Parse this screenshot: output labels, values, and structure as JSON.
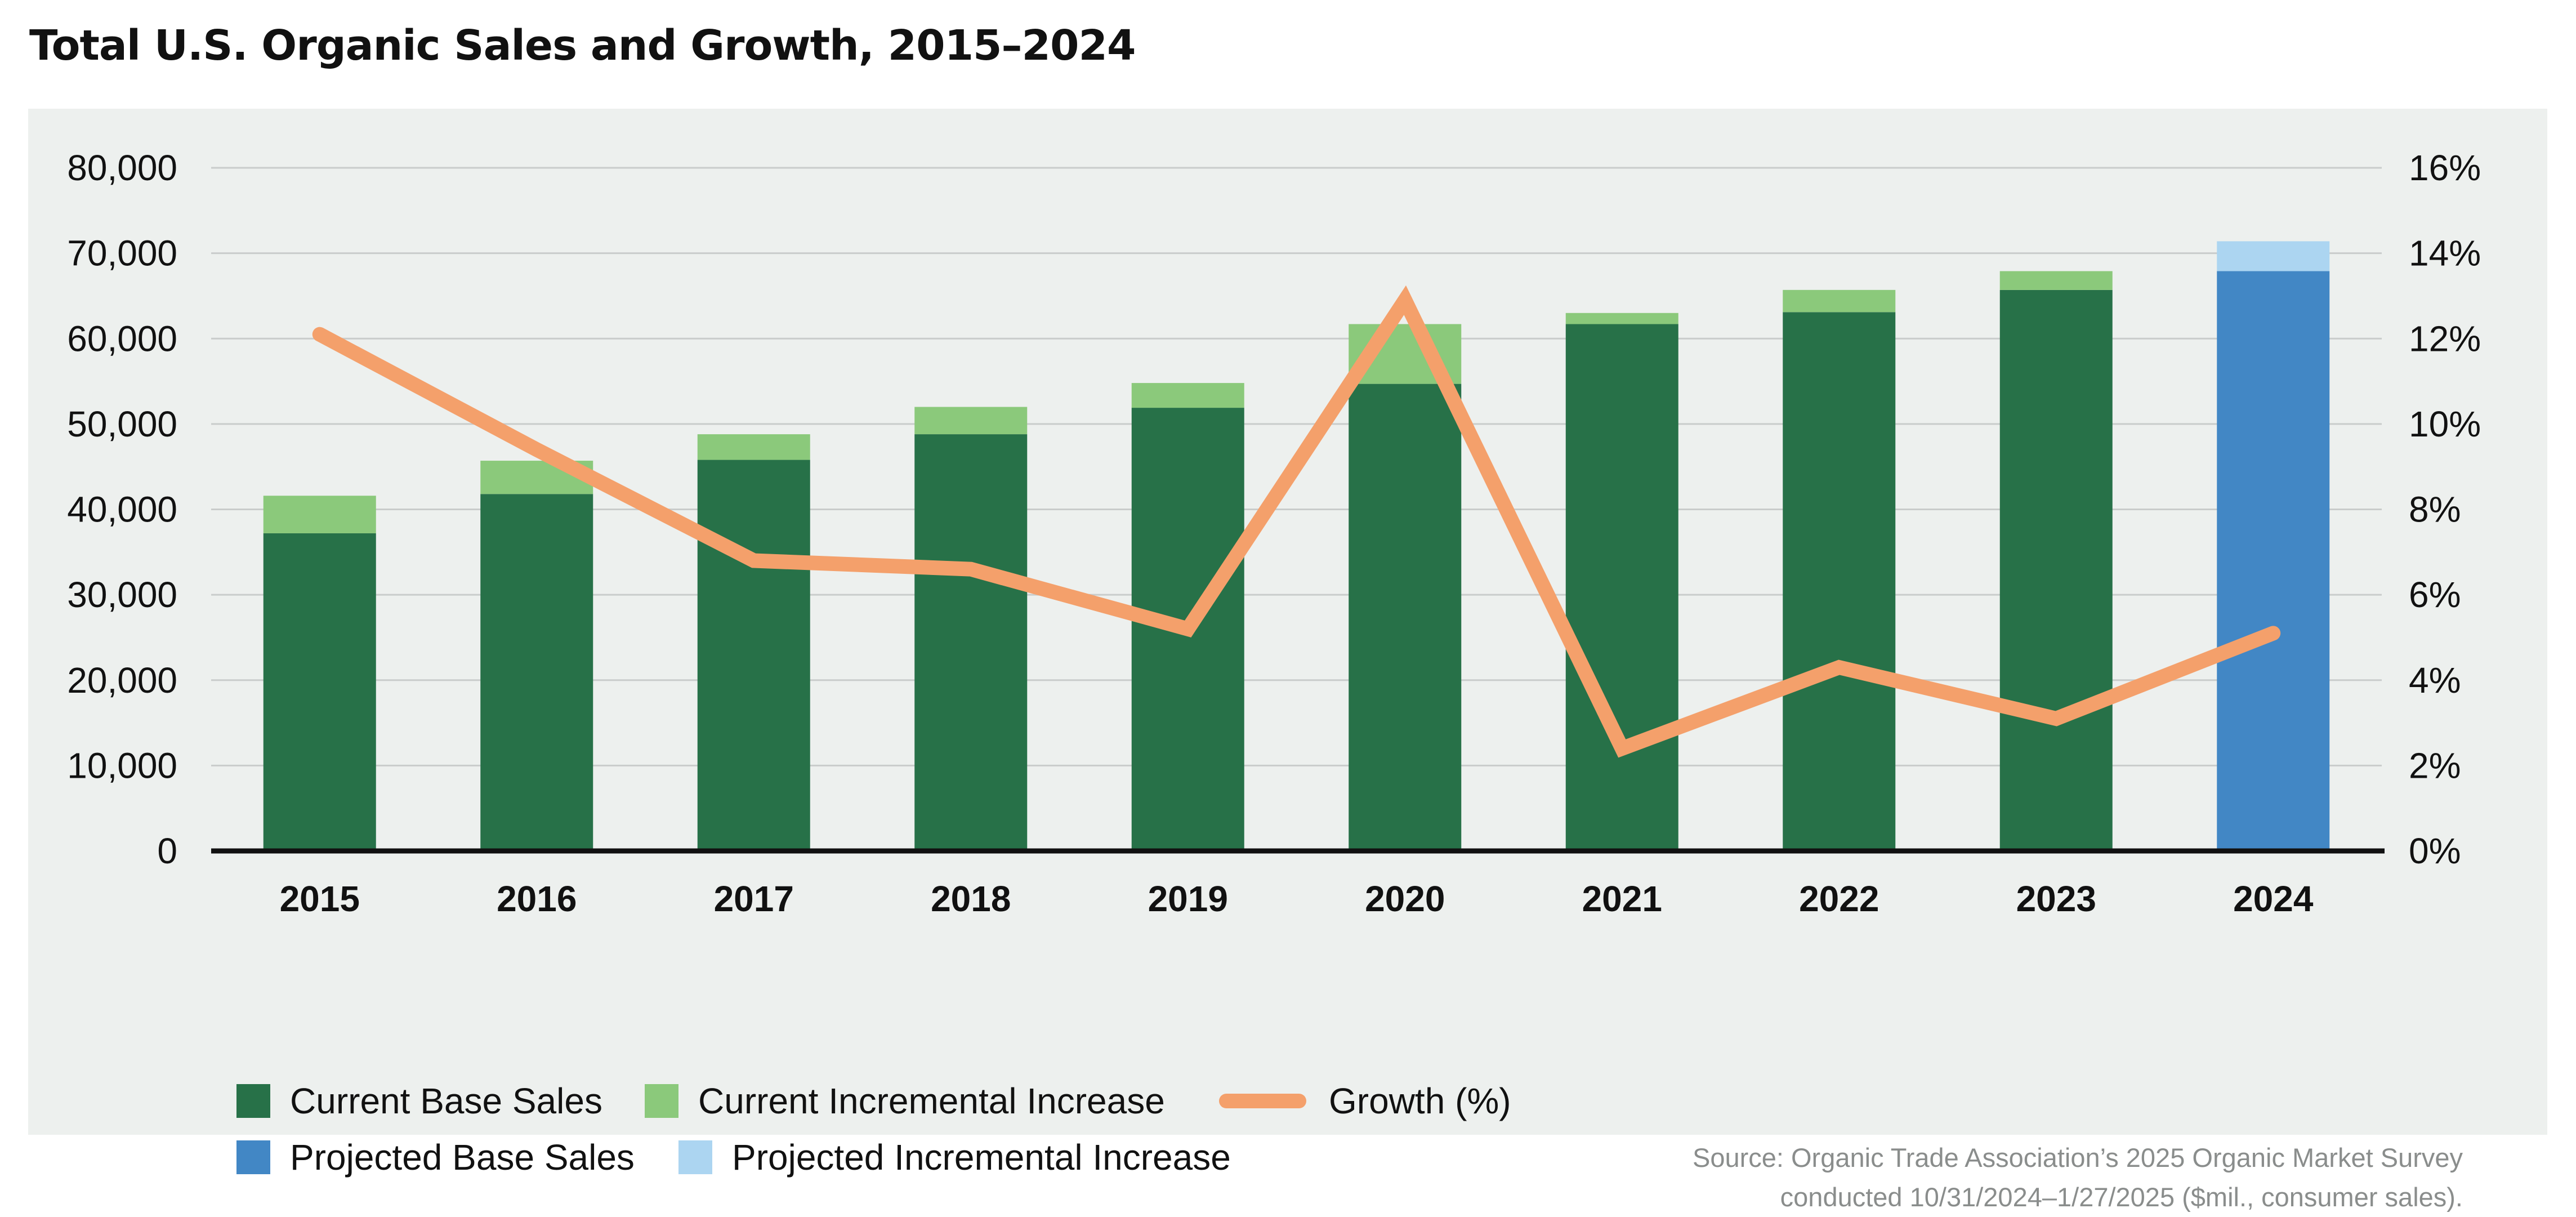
{
  "title": "Total U.S. Organic Sales and Growth, 2015–2024",
  "source_line1": "Source: Organic Trade Association’s 2025 Organic Market Survey",
  "source_line2": "conducted 10/31/2024–1/27/2025 ($mil., consumer sales).",
  "colors": {
    "current_base": "#277148",
    "current_incremental": "#8bc97b",
    "projected_base": "#4287c5",
    "projected_incremental": "#acd5f1",
    "growth": "#f4a06b",
    "panel": "#edf0ee"
  },
  "legend": [
    {
      "label": "Current Base Sales",
      "kind": "box",
      "color": "#277148"
    },
    {
      "label": "Current Incremental Increase",
      "kind": "box",
      "color": "#8bc97b"
    },
    {
      "label": "Growth (%)",
      "kind": "line",
      "color": "#f4a06b"
    },
    {
      "label": "Projected Base Sales",
      "kind": "box",
      "color": "#4287c5"
    },
    {
      "label": "Projected Incremental Increase",
      "kind": "box",
      "color": "#acd5f1"
    }
  ],
  "chart_data": {
    "type": "bar",
    "stacked": true,
    "title": "Total U.S. Organic Sales and Growth, 2015–2024",
    "categories": [
      "2015",
      "2016",
      "2017",
      "2018",
      "2019",
      "2020",
      "2021",
      "2022",
      "2023",
      "2024"
    ],
    "y_left": {
      "min": 0,
      "max": 80000,
      "ticks": [
        "0",
        "10,000",
        "20,000",
        "30,000",
        "40,000",
        "50,000",
        "60,000",
        "70,000",
        "80,000"
      ]
    },
    "y_right": {
      "min": 0,
      "max": 16,
      "ticks": [
        "0%",
        "2%",
        "4%",
        "6%",
        "8%",
        "10%",
        "12%",
        "14%",
        "16%"
      ]
    },
    "grid": true,
    "series": [
      {
        "name": "Current Base Sales",
        "axis": "left",
        "values": [
          37200,
          41800,
          45800,
          48800,
          51900,
          54700,
          61700,
          63100,
          65700,
          null
        ]
      },
      {
        "name": "Current Incremental Increase",
        "axis": "left",
        "values": [
          4400,
          3900,
          3000,
          3200,
          2900,
          7000,
          1300,
          2600,
          2200,
          null
        ]
      },
      {
        "name": "Projected Base Sales",
        "axis": "left",
        "values": [
          null,
          null,
          null,
          null,
          null,
          null,
          null,
          null,
          null,
          67900
        ]
      },
      {
        "name": "Projected Incremental Increase",
        "axis": "left",
        "values": [
          null,
          null,
          null,
          null,
          null,
          null,
          null,
          null,
          null,
          3500
        ]
      },
      {
        "name": "Growth (%)",
        "type": "line",
        "axis": "right",
        "values": [
          12.1,
          9.4,
          6.8,
          6.6,
          5.2,
          12.9,
          2.4,
          4.3,
          3.1,
          5.1
        ]
      }
    ],
    "legend_position": "bottom-left"
  }
}
